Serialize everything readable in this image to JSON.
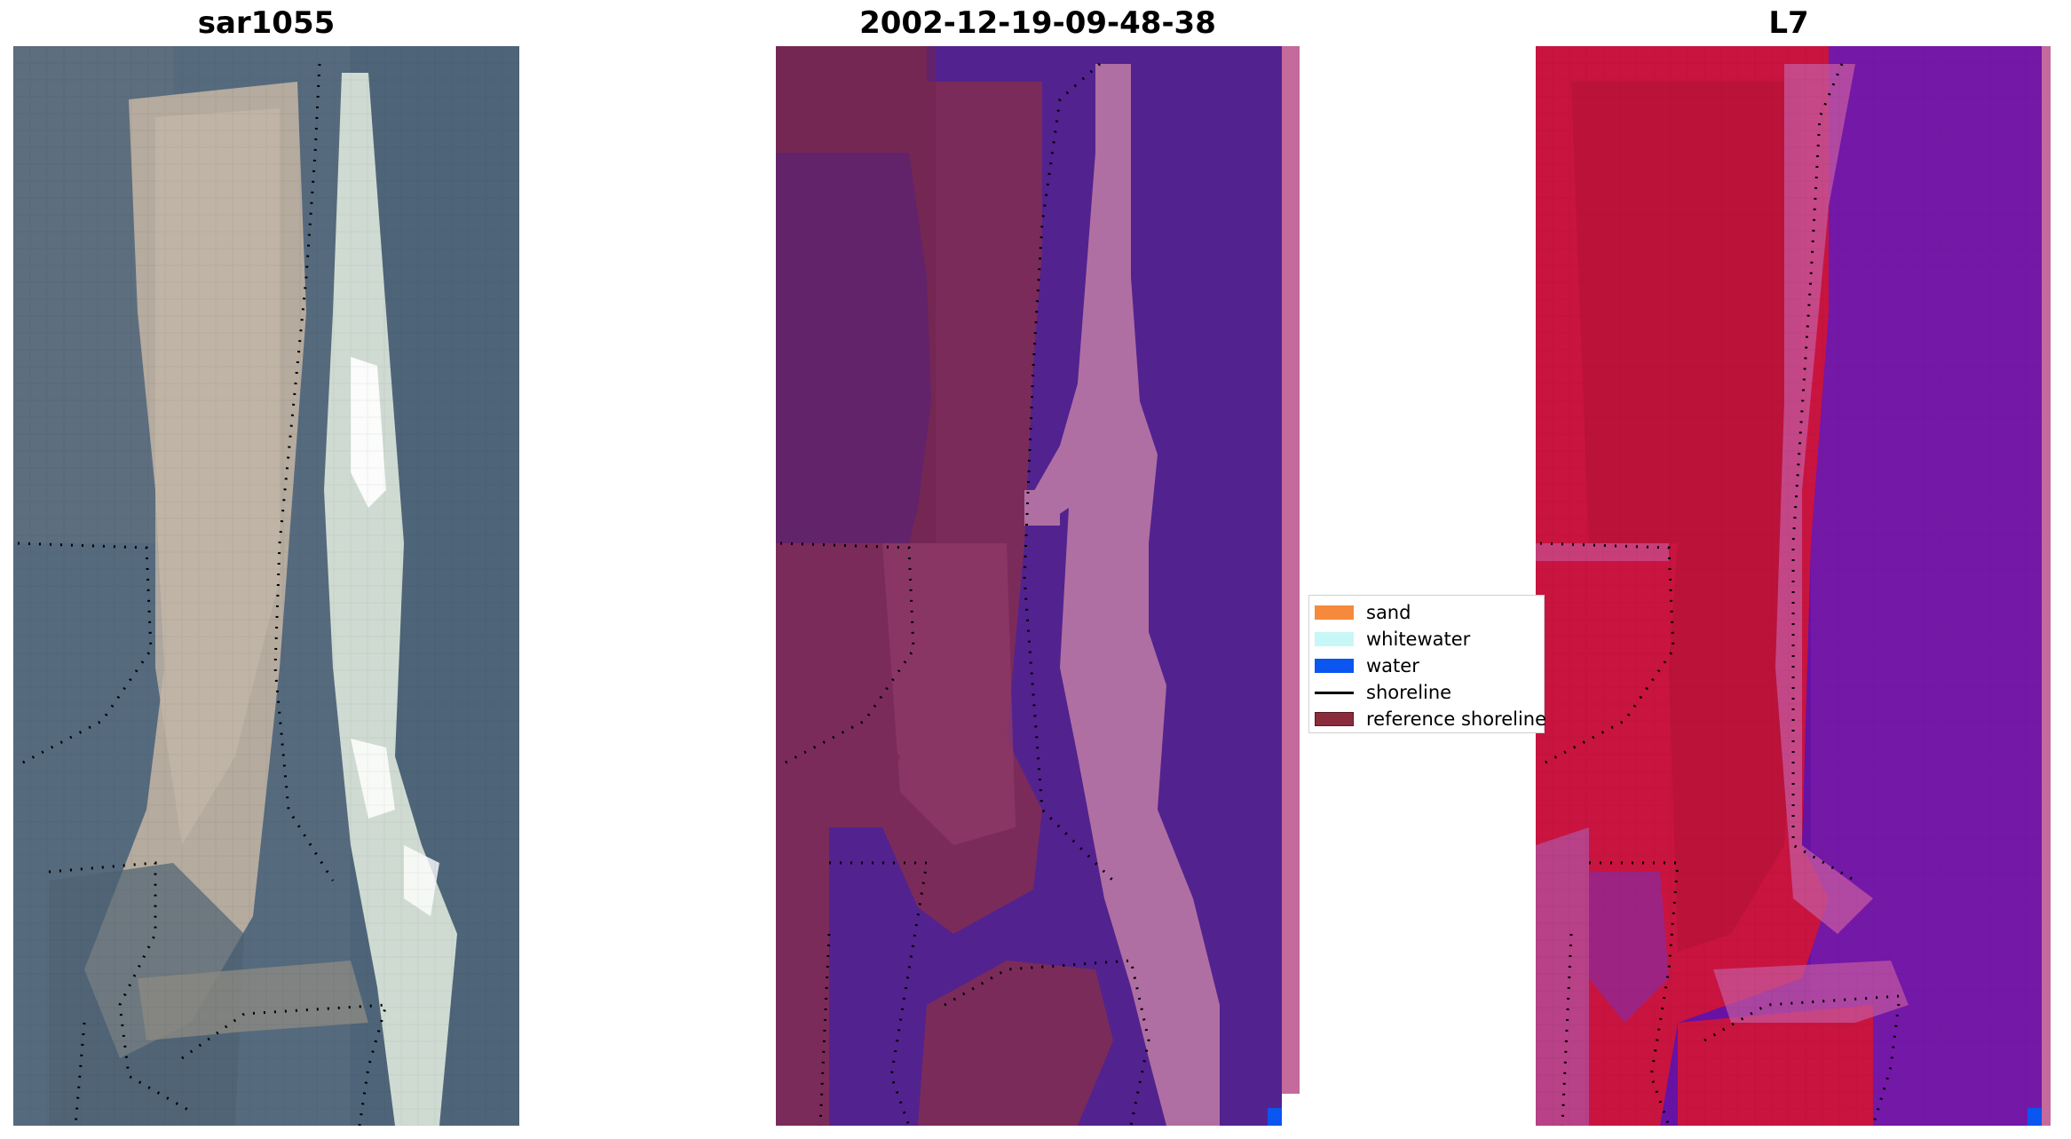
{
  "panels": [
    {
      "title": "sar1055"
    },
    {
      "title": "2002-12-19-09-48-38"
    },
    {
      "title": "L7"
    }
  ],
  "legend": {
    "items": [
      {
        "label": "sand",
        "color": "#f58a3c"
      },
      {
        "label": "whitewater",
        "color": "#c8f7f7"
      },
      {
        "label": "water",
        "color": "#0b55f0"
      },
      {
        "label": "shoreline",
        "color": "#000000"
      },
      {
        "label": "reference shoreline",
        "color": "#8b2c3c"
      }
    ]
  },
  "colors": {
    "rgb_land": "#5d6e80",
    "rgb_sand": "#b3a89a",
    "rgb_whitewater": "#d5e4d8",
    "class_land": "#7b2b5a",
    "class_water": "#52228f",
    "class_whitewater": "#b06fa2",
    "class_edge": "#c46a9c",
    "index_sand": "#c8143f",
    "index_water": "#6812a5",
    "index_mix": "#c65aa0"
  }
}
